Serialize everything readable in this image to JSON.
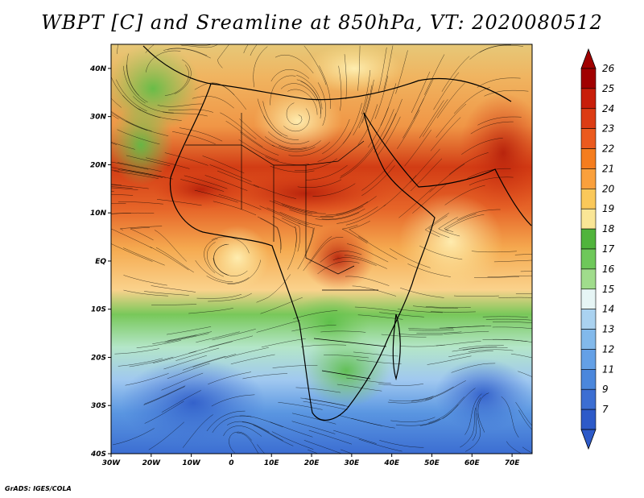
{
  "title": "WBPT [C] and Sreamline at 850hPa, VT: 2020080512",
  "credit": "GrADS: IGES/COLA",
  "map": {
    "lon_range": [
      -30,
      75
    ],
    "lat_range": [
      -40,
      45
    ],
    "lon_ticks": [
      "30W",
      "20W",
      "10W",
      "0",
      "10E",
      "20E",
      "30E",
      "40E",
      "50E",
      "60E",
      "70E"
    ],
    "lat_ticks": [
      "40S",
      "30S",
      "20S",
      "10S",
      "EQ",
      "10N",
      "20N",
      "30N",
      "40N"
    ]
  },
  "colorbar": {
    "labels": [
      "26",
      "25",
      "24",
      "23",
      "22",
      "21",
      "20",
      "19",
      "18",
      "17",
      "16",
      "15",
      "14",
      "13",
      "12",
      "11",
      "9",
      "7"
    ],
    "colors": [
      "#a00000",
      "#c81e0a",
      "#dc3c14",
      "#eb5a1e",
      "#f57d1e",
      "#faa03c",
      "#fac85a",
      "#fae696",
      "#50b43c",
      "#6ec85a",
      "#a0dc8c",
      "#e6f5f5",
      "#aad2f0",
      "#82b9eb",
      "#64a0e6",
      "#4b87dc",
      "#3c6ed2",
      "#2d5ac8"
    ]
  }
}
